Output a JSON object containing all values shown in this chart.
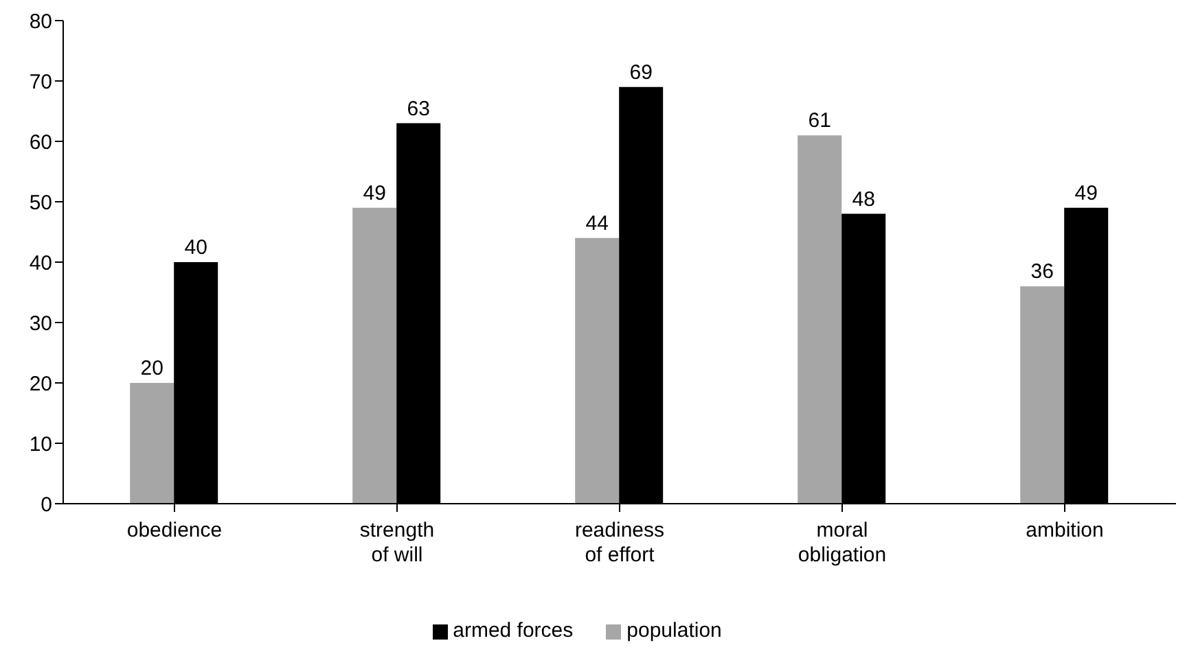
{
  "chart_data": {
    "type": "bar",
    "categories": [
      "obedience",
      "strength of will",
      "readiness of effort",
      "moral obligation",
      "ambition"
    ],
    "series": [
      {
        "name": "population",
        "color": "#a6a6a6",
        "values": [
          20,
          49,
          44,
          61,
          36
        ]
      },
      {
        "name": "armed forces",
        "color": "#000000",
        "values": [
          40,
          63,
          69,
          48,
          49
        ]
      }
    ],
    "ylim": [
      0,
      80
    ],
    "yticks": [
      0,
      10,
      20,
      30,
      40,
      50,
      60,
      70,
      80
    ],
    "grid": false,
    "legend": "bottom",
    "data_labels": true
  }
}
